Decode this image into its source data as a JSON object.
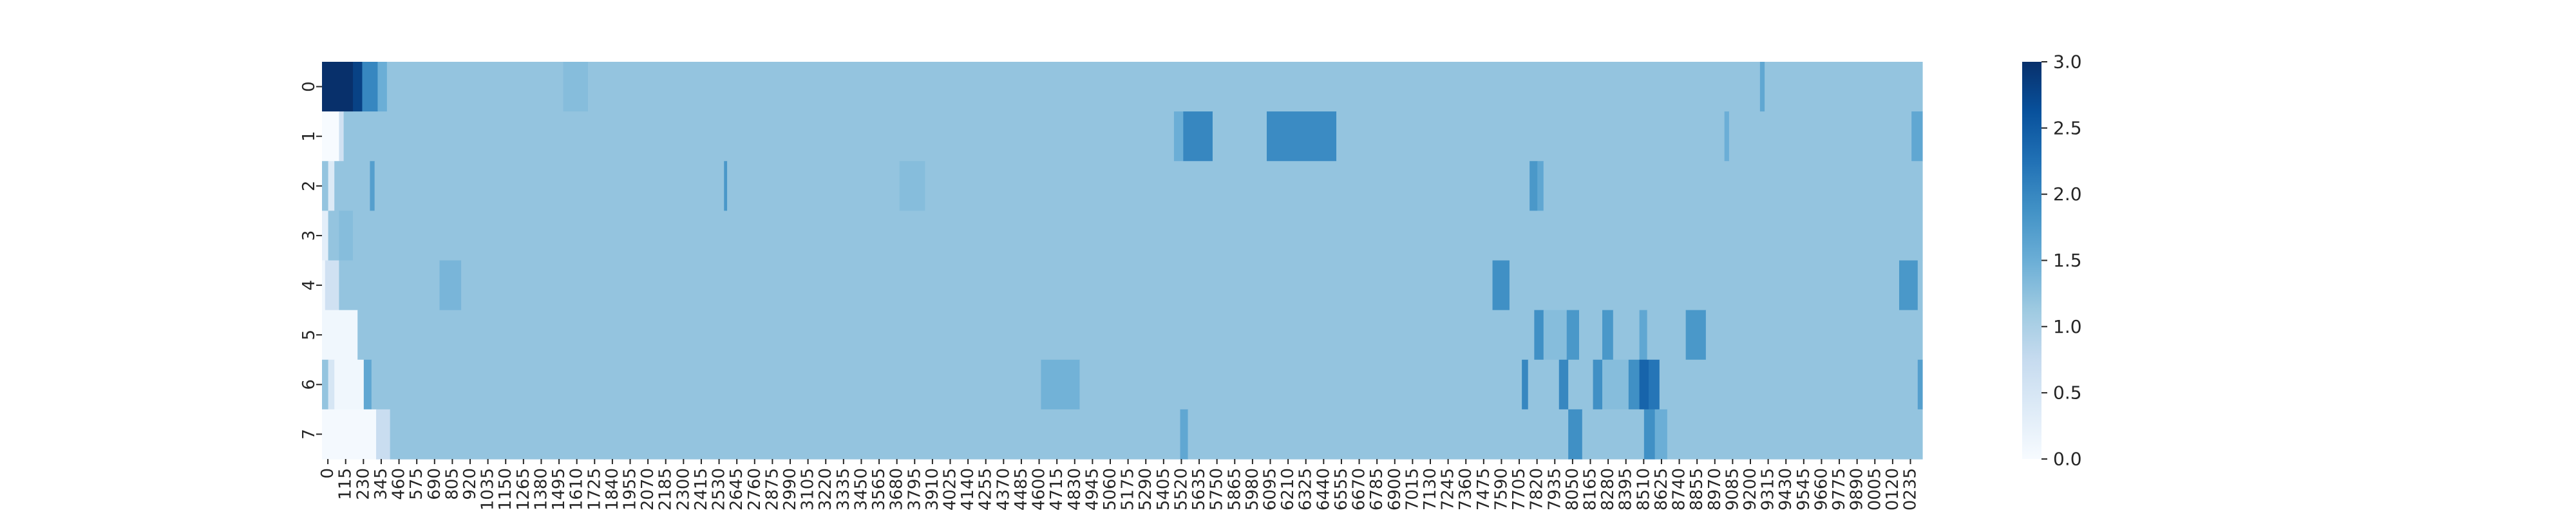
{
  "chart_data": {
    "type": "heatmap",
    "title": "",
    "xlabel": "",
    "ylabel": "",
    "rows": [
      "0",
      "1",
      "2",
      "3",
      "4",
      "5",
      "6",
      "7"
    ],
    "x_tick_labels": [
      "0",
      "115",
      "230",
      "345",
      "460",
      "575",
      "690",
      "805",
      "920",
      "1035",
      "1150",
      "1265",
      "1380",
      "1495",
      "1610",
      "1725",
      "1840",
      "1955",
      "2070",
      "2185",
      "2300",
      "2415",
      "2530",
      "2645",
      "2760",
      "2875",
      "2990",
      "3105",
      "3220",
      "3335",
      "3450",
      "3565",
      "3680",
      "3795",
      "3910",
      "4025",
      "4140",
      "4255",
      "4370",
      "4485",
      "4600",
      "4715",
      "4830",
      "4945",
      "5060",
      "5175",
      "5290",
      "5405",
      "5520",
      "5635",
      "5750",
      "5865",
      "5980",
      "6095",
      "6210",
      "6325",
      "6440",
      "6555",
      "6670",
      "6785",
      "6900",
      "7015",
      "7130",
      "7245",
      "7360",
      "7475",
      "7590",
      "7705",
      "7820",
      "7935",
      "8050",
      "8165",
      "8280",
      "8395",
      "8510",
      "8625",
      "8740",
      "8855",
      "8970",
      "9085",
      "9200",
      "9315",
      "9430",
      "9545",
      "9660",
      "9775",
      "9890",
      "0005",
      "0120",
      "0235"
    ],
    "n_columns": 10350,
    "value_range": [
      0,
      3
    ],
    "colormap": "Blues",
    "colorbar_ticks": [
      "0.0",
      "0.5",
      "1.0",
      "1.5",
      "2.0",
      "2.5",
      "3.0"
    ],
    "base_value": 1.2,
    "row_segments": [
      [
        [
          0,
          200,
          3.0
        ],
        [
          200,
          260,
          2.8
        ],
        [
          260,
          360,
          2.0
        ],
        [
          360,
          420,
          1.5
        ],
        [
          420,
          1560,
          1.2
        ],
        [
          1560,
          1720,
          1.3
        ],
        [
          1720,
          9300,
          1.2
        ],
        [
          9300,
          9330,
          1.6
        ],
        [
          9330,
          10350,
          1.2
        ]
      ],
      [
        [
          0,
          110,
          0.0
        ],
        [
          110,
          140,
          0.6
        ],
        [
          140,
          5510,
          1.2
        ],
        [
          5510,
          5570,
          1.5
        ],
        [
          5570,
          5760,
          2.0
        ],
        [
          5760,
          6110,
          1.2
        ],
        [
          6110,
          6560,
          1.95
        ],
        [
          6560,
          9070,
          1.2
        ],
        [
          9070,
          9100,
          1.5
        ],
        [
          9100,
          10280,
          1.2
        ],
        [
          10280,
          10350,
          1.6
        ]
      ],
      [
        [
          0,
          40,
          1.2
        ],
        [
          40,
          80,
          0.4
        ],
        [
          80,
          310,
          1.2
        ],
        [
          310,
          340,
          1.7
        ],
        [
          340,
          2600,
          1.2
        ],
        [
          2600,
          2620,
          1.8
        ],
        [
          2620,
          3735,
          1.2
        ],
        [
          3735,
          3900,
          1.3
        ],
        [
          3900,
          7810,
          1.2
        ],
        [
          7810,
          7860,
          1.8
        ],
        [
          7860,
          7900,
          1.6
        ],
        [
          7900,
          10350,
          1.2
        ]
      ],
      [
        [
          0,
          40,
          0.3
        ],
        [
          40,
          110,
          1.2
        ],
        [
          110,
          200,
          1.3
        ],
        [
          200,
          10350,
          1.2
        ]
      ],
      [
        [
          0,
          20,
          0.1
        ],
        [
          20,
          110,
          0.6
        ],
        [
          110,
          760,
          1.2
        ],
        [
          760,
          900,
          1.4
        ],
        [
          900,
          7570,
          1.2
        ],
        [
          7570,
          7680,
          1.9
        ],
        [
          7680,
          10200,
          1.2
        ],
        [
          10200,
          10320,
          1.8
        ],
        [
          10320,
          10350,
          1.2
        ]
      ],
      [
        [
          0,
          230,
          0.1
        ],
        [
          230,
          7840,
          1.2
        ],
        [
          7840,
          7900,
          1.9
        ],
        [
          7900,
          8050,
          1.3
        ],
        [
          8050,
          8130,
          1.8
        ],
        [
          8130,
          8280,
          1.2
        ],
        [
          8280,
          8350,
          1.8
        ],
        [
          8350,
          8520,
          1.2
        ],
        [
          8520,
          8570,
          1.6
        ],
        [
          8570,
          8820,
          1.2
        ],
        [
          8820,
          8950,
          1.8
        ],
        [
          8950,
          10350,
          1.2
        ]
      ],
      [
        [
          0,
          40,
          1.2
        ],
        [
          40,
          80,
          0.5
        ],
        [
          80,
          270,
          0.1
        ],
        [
          270,
          320,
          1.6
        ],
        [
          320,
          4650,
          1.2
        ],
        [
          4650,
          4900,
          1.45
        ],
        [
          4900,
          7760,
          1.2
        ],
        [
          7760,
          7800,
          2.0
        ],
        [
          7800,
          8000,
          1.2
        ],
        [
          8000,
          8060,
          2.0
        ],
        [
          8060,
          8220,
          1.2
        ],
        [
          8220,
          8280,
          1.9
        ],
        [
          8280,
          8450,
          1.3
        ],
        [
          8450,
          8520,
          1.9
        ],
        [
          8520,
          8580,
          2.4
        ],
        [
          8580,
          8650,
          2.2
        ],
        [
          8650,
          10320,
          1.2
        ],
        [
          10320,
          10350,
          1.7
        ]
      ],
      [
        [
          0,
          350,
          0.05
        ],
        [
          350,
          440,
          0.7
        ],
        [
          440,
          5550,
          1.2
        ],
        [
          5550,
          5600,
          1.6
        ],
        [
          5600,
          8060,
          1.2
        ],
        [
          8060,
          8150,
          1.9
        ],
        [
          8150,
          8550,
          1.2
        ],
        [
          8550,
          8620,
          1.9
        ],
        [
          8620,
          8700,
          1.5
        ],
        [
          8700,
          10350,
          1.2
        ]
      ]
    ]
  }
}
